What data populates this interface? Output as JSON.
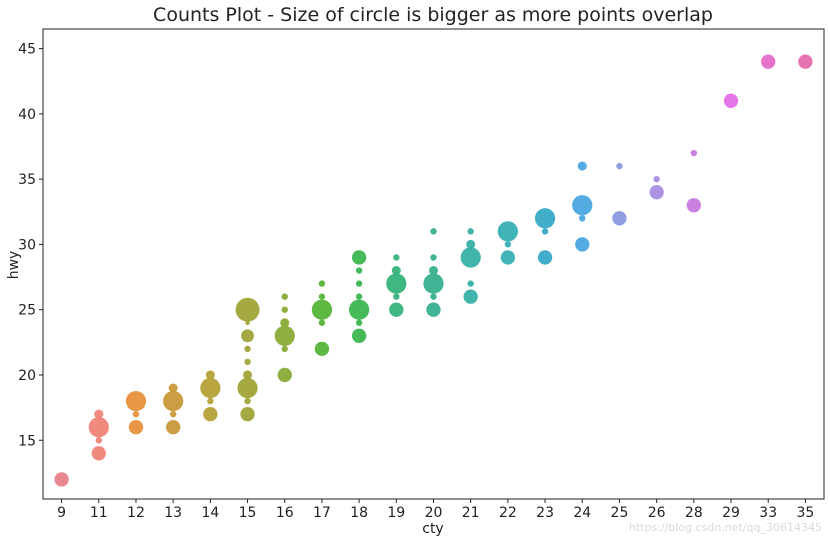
{
  "chart_data": {
    "type": "scatter",
    "title": "Counts Plot - Size of circle is bigger as more points overlap",
    "xlabel": "cty",
    "ylabel": "hwy",
    "categories": [
      "9",
      "11",
      "12",
      "13",
      "14",
      "15",
      "16",
      "17",
      "18",
      "19",
      "20",
      "21",
      "22",
      "23",
      "24",
      "25",
      "26",
      "28",
      "29",
      "33",
      "35"
    ],
    "y_ticks": [
      15,
      20,
      25,
      30,
      35,
      40,
      45
    ],
    "ylim": [
      10.5,
      46.5
    ],
    "grid": false,
    "legend": "none",
    "points": [
      {
        "x": "9",
        "y": 12,
        "count": 5,
        "color": "#e8818a"
      },
      {
        "x": "11",
        "y": 17,
        "count": 2,
        "color": "#ef8478"
      },
      {
        "x": "11",
        "y": 16,
        "count": 10,
        "color": "#ef8478"
      },
      {
        "x": "11",
        "y": 15,
        "count": 1,
        "color": "#ef8478"
      },
      {
        "x": "11",
        "y": 14,
        "count": 5,
        "color": "#ef8478"
      },
      {
        "x": "12",
        "y": 18,
        "count": 10,
        "color": "#e6913c"
      },
      {
        "x": "12",
        "y": 17,
        "count": 1,
        "color": "#e6913c"
      },
      {
        "x": "12",
        "y": 16,
        "count": 5,
        "color": "#e6913c"
      },
      {
        "x": "13",
        "y": 19,
        "count": 2,
        "color": "#c9993a"
      },
      {
        "x": "13",
        "y": 18,
        "count": 10,
        "color": "#c9993a"
      },
      {
        "x": "13",
        "y": 17,
        "count": 1,
        "color": "#c9993a"
      },
      {
        "x": "13",
        "y": 16,
        "count": 5,
        "color": "#c9993a"
      },
      {
        "x": "14",
        "y": 20,
        "count": 2,
        "color": "#b6a137"
      },
      {
        "x": "14",
        "y": 19,
        "count": 10,
        "color": "#b6a137"
      },
      {
        "x": "14",
        "y": 18,
        "count": 1,
        "color": "#b6a137"
      },
      {
        "x": "14",
        "y": 17,
        "count": 5,
        "color": "#b6a137"
      },
      {
        "x": "15",
        "y": 25,
        "count": 14,
        "color": "#a0a437"
      },
      {
        "x": "15",
        "y": 24,
        "count": 0.5,
        "color": "#a0a437"
      },
      {
        "x": "15",
        "y": 23,
        "count": 4,
        "color": "#a0a437"
      },
      {
        "x": "15",
        "y": 22,
        "count": 1,
        "color": "#a0a437"
      },
      {
        "x": "15",
        "y": 21,
        "count": 1,
        "color": "#a0a437"
      },
      {
        "x": "15",
        "y": 20,
        "count": 2,
        "color": "#a0a437"
      },
      {
        "x": "15",
        "y": 19,
        "count": 10,
        "color": "#a0a437"
      },
      {
        "x": "15",
        "y": 18,
        "count": 1,
        "color": "#a0a437"
      },
      {
        "x": "15",
        "y": 17,
        "count": 5,
        "color": "#a0a437"
      },
      {
        "x": "16",
        "y": 26,
        "count": 1,
        "color": "#8aab37"
      },
      {
        "x": "16",
        "y": 25,
        "count": 1,
        "color": "#8aab37"
      },
      {
        "x": "16",
        "y": 24,
        "count": 2,
        "color": "#8aab37"
      },
      {
        "x": "16",
        "y": 23,
        "count": 10,
        "color": "#8aab37"
      },
      {
        "x": "16",
        "y": 22,
        "count": 1,
        "color": "#8aab37"
      },
      {
        "x": "16",
        "y": 20,
        "count": 5,
        "color": "#8aab37"
      },
      {
        "x": "17",
        "y": 27,
        "count": 1,
        "color": "#55b539"
      },
      {
        "x": "17",
        "y": 26,
        "count": 1,
        "color": "#55b539"
      },
      {
        "x": "17",
        "y": 25,
        "count": 10,
        "color": "#55b539"
      },
      {
        "x": "17",
        "y": 24,
        "count": 1,
        "color": "#55b539"
      },
      {
        "x": "17",
        "y": 22,
        "count": 5,
        "color": "#55b539"
      },
      {
        "x": "18",
        "y": 29,
        "count": 5,
        "color": "#3cb64f"
      },
      {
        "x": "18",
        "y": 28,
        "count": 1,
        "color": "#3cb64f"
      },
      {
        "x": "18",
        "y": 27,
        "count": 1,
        "color": "#3cb64f"
      },
      {
        "x": "18",
        "y": 26,
        "count": 1,
        "color": "#3cb64f"
      },
      {
        "x": "18",
        "y": 25,
        "count": 10,
        "color": "#3cb64f"
      },
      {
        "x": "18",
        "y": 24,
        "count": 1,
        "color": "#3cb64f"
      },
      {
        "x": "18",
        "y": 23,
        "count": 5,
        "color": "#3cb64f"
      },
      {
        "x": "19",
        "y": 29,
        "count": 1,
        "color": "#36b27b"
      },
      {
        "x": "19",
        "y": 28,
        "count": 2,
        "color": "#36b27b"
      },
      {
        "x": "19",
        "y": 27,
        "count": 10,
        "color": "#36b27b"
      },
      {
        "x": "19",
        "y": 26,
        "count": 1,
        "color": "#36b27b"
      },
      {
        "x": "19",
        "y": 25,
        "count": 5,
        "color": "#36b27b"
      },
      {
        "x": "20",
        "y": 31,
        "count": 1,
        "color": "#36b08f"
      },
      {
        "x": "20",
        "y": 29,
        "count": 1,
        "color": "#36b08f"
      },
      {
        "x": "20",
        "y": 28,
        "count": 2,
        "color": "#36b08f"
      },
      {
        "x": "20",
        "y": 27,
        "count": 10,
        "color": "#36b08f"
      },
      {
        "x": "20",
        "y": 26,
        "count": 1,
        "color": "#36b08f"
      },
      {
        "x": "20",
        "y": 25,
        "count": 5,
        "color": "#36b08f"
      },
      {
        "x": "21",
        "y": 31,
        "count": 1,
        "color": "#37b1a6"
      },
      {
        "x": "21",
        "y": 30,
        "count": 2,
        "color": "#37b1a6"
      },
      {
        "x": "21",
        "y": 29,
        "count": 10,
        "color": "#37b1a6"
      },
      {
        "x": "21",
        "y": 27,
        "count": 1,
        "color": "#37b1a6"
      },
      {
        "x": "21",
        "y": 26,
        "count": 5,
        "color": "#37b1a6"
      },
      {
        "x": "22",
        "y": 31,
        "count": 10,
        "color": "#37b0b6"
      },
      {
        "x": "22",
        "y": 30,
        "count": 1,
        "color": "#37b0b6"
      },
      {
        "x": "22",
        "y": 29,
        "count": 5,
        "color": "#37b0b6"
      },
      {
        "x": "23",
        "y": 32,
        "count": 10,
        "color": "#38a9c6"
      },
      {
        "x": "23",
        "y": 31,
        "count": 1,
        "color": "#38a9c6"
      },
      {
        "x": "23",
        "y": 29,
        "count": 5,
        "color": "#38a9c6"
      },
      {
        "x": "24",
        "y": 36,
        "count": 2,
        "color": "#4aa6e0"
      },
      {
        "x": "24",
        "y": 33,
        "count": 10,
        "color": "#4aa6e0"
      },
      {
        "x": "24",
        "y": 32,
        "count": 1,
        "color": "#4aa6e0"
      },
      {
        "x": "24",
        "y": 30,
        "count": 5,
        "color": "#4aa6e0"
      },
      {
        "x": "25",
        "y": 36,
        "count": 1,
        "color": "#8a9ade"
      },
      {
        "x": "25",
        "y": 32,
        "count": 5,
        "color": "#8a9ade"
      },
      {
        "x": "26",
        "y": 35,
        "count": 1,
        "color": "#a88ee0"
      },
      {
        "x": "26",
        "y": 34,
        "count": 5,
        "color": "#a88ee0"
      },
      {
        "x": "28",
        "y": 37,
        "count": 1,
        "color": "#c779de"
      },
      {
        "x": "28",
        "y": 33,
        "count": 5,
        "color": "#c779de"
      },
      {
        "x": "29",
        "y": 41,
        "count": 5,
        "color": "#e36ee6"
      },
      {
        "x": "33",
        "y": 44,
        "count": 5,
        "color": "#e56cc8"
      },
      {
        "x": "35",
        "y": 44,
        "count": 5,
        "color": "#e56cab"
      }
    ]
  },
  "watermark": "https://blog.csdn.net/qq_30614345"
}
